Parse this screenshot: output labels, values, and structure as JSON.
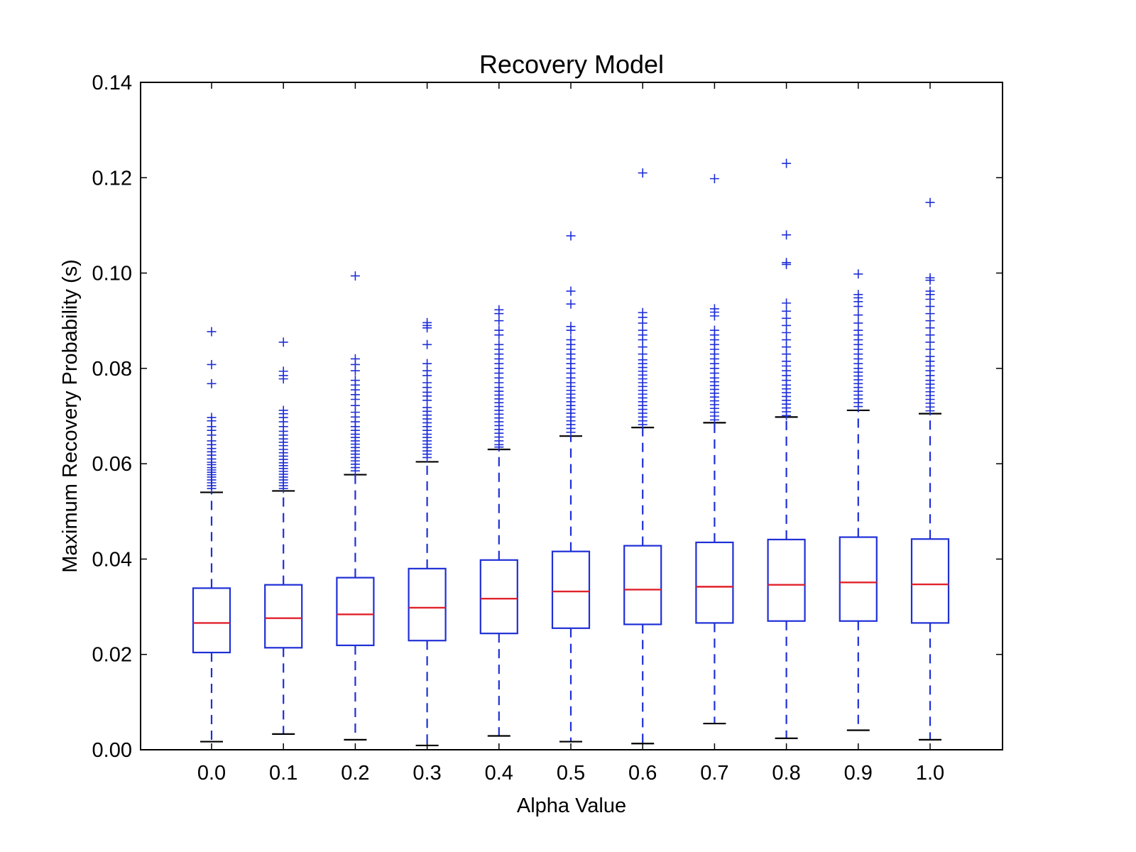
{
  "chart_data": {
    "type": "box",
    "title": "Recovery Model",
    "xlabel": "Alpha Value",
    "ylabel": "Maximum Recovery Probability (s)",
    "ylim": [
      0,
      0.14
    ],
    "yticks": [
      "0.00",
      "0.02",
      "0.04",
      "0.06",
      "0.08",
      "0.10",
      "0.12",
      "0.14"
    ],
    "categories": [
      "0.0",
      "0.1",
      "0.2",
      "0.3",
      "0.4",
      "0.5",
      "0.6",
      "0.7",
      "0.8",
      "0.9",
      "1.0"
    ],
    "colors": {
      "box": "#1f2fd6",
      "median": "#e0222b",
      "cap": "#000000",
      "outlier": "#1f2fd6"
    },
    "boxes": [
      {
        "whislo": 0.0017,
        "q1": 0.0204,
        "med": 0.0266,
        "q3": 0.0339,
        "whishi": 0.054,
        "fliers": [
          0.0877,
          0.0808,
          0.0768,
          0.0697,
          0.069,
          0.0678,
          0.067,
          0.066,
          0.0648,
          0.064,
          0.0632,
          0.0625,
          0.0618,
          0.061,
          0.0603,
          0.0598,
          0.0592,
          0.0587,
          0.0582,
          0.0577,
          0.0572,
          0.0566,
          0.056,
          0.0554,
          0.0548
        ]
      },
      {
        "whislo": 0.0033,
        "q1": 0.0214,
        "med": 0.0276,
        "q3": 0.0346,
        "whishi": 0.0543,
        "fliers": [
          0.0855,
          0.0794,
          0.0785,
          0.0778,
          0.0712,
          0.0705,
          0.0697,
          0.0688,
          0.0678,
          0.0668,
          0.066,
          0.0652,
          0.0645,
          0.0638,
          0.063,
          0.0623,
          0.0616,
          0.0609,
          0.0602,
          0.0596,
          0.059,
          0.0584,
          0.0578,
          0.0572,
          0.0566,
          0.056,
          0.0554,
          0.0548
        ]
      },
      {
        "whislo": 0.0021,
        "q1": 0.0219,
        "med": 0.0284,
        "q3": 0.0361,
        "whishi": 0.0577,
        "fliers": [
          0.0994,
          0.082,
          0.0808,
          0.0795,
          0.0775,
          0.0765,
          0.0755,
          0.0745,
          0.0735,
          0.0722,
          0.0708,
          0.0698,
          0.0688,
          0.0678,
          0.067,
          0.0662,
          0.0655,
          0.0648,
          0.0641,
          0.0634,
          0.0627,
          0.062,
          0.0613,
          0.0606,
          0.0599,
          0.0592,
          0.0585
        ]
      },
      {
        "whislo": 0.0009,
        "q1": 0.0229,
        "med": 0.0298,
        "q3": 0.038,
        "whishi": 0.0604,
        "fliers": [
          0.0896,
          0.089,
          0.0885,
          0.085,
          0.081,
          0.0795,
          0.0785,
          0.077,
          0.076,
          0.075,
          0.0742,
          0.0733,
          0.0718,
          0.071,
          0.0702,
          0.0694,
          0.0686,
          0.0678,
          0.067,
          0.0662,
          0.0655,
          0.0648,
          0.0641,
          0.0634,
          0.0627,
          0.062,
          0.0613
        ]
      },
      {
        "whislo": 0.0029,
        "q1": 0.0244,
        "med": 0.0317,
        "q3": 0.0398,
        "whishi": 0.063,
        "fliers": [
          0.0923,
          0.0915,
          0.09,
          0.088,
          0.087,
          0.085,
          0.084,
          0.083,
          0.082,
          0.081,
          0.08,
          0.079,
          0.078,
          0.077,
          0.076,
          0.0752,
          0.0744,
          0.0736,
          0.0728,
          0.072,
          0.0712,
          0.0704,
          0.0696,
          0.0688,
          0.068,
          0.0672,
          0.0664,
          0.0656,
          0.0648,
          0.064,
          0.0635
        ]
      },
      {
        "whislo": 0.0017,
        "q1": 0.0255,
        "med": 0.0332,
        "q3": 0.0416,
        "whishi": 0.0658,
        "fliers": [
          0.1078,
          0.0962,
          0.0935,
          0.0888,
          0.088,
          0.086,
          0.085,
          0.084,
          0.083,
          0.082,
          0.081,
          0.08,
          0.079,
          0.078,
          0.077,
          0.0762,
          0.0754,
          0.0746,
          0.0738,
          0.073,
          0.0722,
          0.0714,
          0.0706,
          0.0698,
          0.069,
          0.0682,
          0.0674,
          0.0666
        ]
      },
      {
        "whislo": 0.0013,
        "q1": 0.0263,
        "med": 0.0336,
        "q3": 0.0428,
        "whishi": 0.0676,
        "fliers": [
          0.121,
          0.0917,
          0.0907,
          0.0895,
          0.088,
          0.087,
          0.086,
          0.0845,
          0.083,
          0.0818,
          0.081,
          0.0802,
          0.0794,
          0.0786,
          0.0778,
          0.077,
          0.0762,
          0.0754,
          0.0746,
          0.0738,
          0.073,
          0.0722,
          0.0714,
          0.0706,
          0.0698,
          0.069,
          0.0682
        ]
      },
      {
        "whislo": 0.0055,
        "q1": 0.0266,
        "med": 0.0342,
        "q3": 0.0435,
        "whishi": 0.0686,
        "fliers": [
          0.1198,
          0.0925,
          0.0918,
          0.091,
          0.088,
          0.087,
          0.086,
          0.085,
          0.084,
          0.083,
          0.082,
          0.081,
          0.08,
          0.079,
          0.078,
          0.0772,
          0.0764,
          0.0756,
          0.0748,
          0.074,
          0.0732,
          0.0724,
          0.0716,
          0.0708,
          0.07,
          0.0692
        ]
      },
      {
        "whislo": 0.0024,
        "q1": 0.027,
        "med": 0.0346,
        "q3": 0.0441,
        "whishi": 0.0698,
        "fliers": [
          0.123,
          0.108,
          0.1022,
          0.1018,
          0.0937,
          0.092,
          0.0905,
          0.089,
          0.0875,
          0.086,
          0.0845,
          0.083,
          0.0815,
          0.0805,
          0.0795,
          0.0785,
          0.0775,
          0.0765,
          0.0757,
          0.0749,
          0.0741,
          0.0733,
          0.0725,
          0.0717,
          0.0709,
          0.0701
        ]
      },
      {
        "whislo": 0.0041,
        "q1": 0.027,
        "med": 0.0351,
        "q3": 0.0446,
        "whishi": 0.0712,
        "fliers": [
          0.0998,
          0.0955,
          0.0948,
          0.094,
          0.093,
          0.0912,
          0.0895,
          0.088,
          0.087,
          0.086,
          0.085,
          0.084,
          0.083,
          0.082,
          0.081,
          0.08,
          0.0792,
          0.0784,
          0.0776,
          0.0768,
          0.076,
          0.0752,
          0.0744,
          0.0736,
          0.0728,
          0.072
        ]
      },
      {
        "whislo": 0.0021,
        "q1": 0.0266,
        "med": 0.0347,
        "q3": 0.0442,
        "whishi": 0.0705,
        "fliers": [
          0.1148,
          0.099,
          0.0985,
          0.0962,
          0.0955,
          0.0945,
          0.093,
          0.0915,
          0.09,
          0.0885,
          0.087,
          0.0855,
          0.084,
          0.0825,
          0.0815,
          0.0805,
          0.0795,
          0.0785,
          0.0775,
          0.0767,
          0.0759,
          0.0751,
          0.0743,
          0.0735,
          0.0727,
          0.0719,
          0.0711
        ]
      }
    ]
  }
}
